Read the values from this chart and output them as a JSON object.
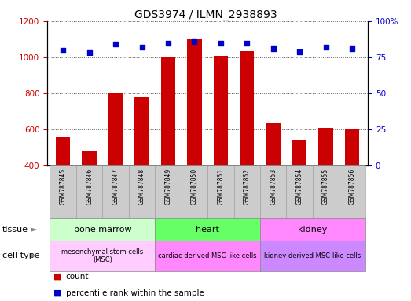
{
  "title": "GDS3974 / ILMN_2938893",
  "samples": [
    "GSM787845",
    "GSM787846",
    "GSM787847",
    "GSM787848",
    "GSM787849",
    "GSM787850",
    "GSM787851",
    "GSM787852",
    "GSM787853",
    "GSM787854",
    "GSM787855",
    "GSM787856"
  ],
  "counts": [
    555,
    480,
    800,
    780,
    1000,
    1100,
    1005,
    1035,
    635,
    545,
    610,
    600
  ],
  "percentile_ranks": [
    80,
    78,
    84,
    82,
    85,
    86,
    85,
    85,
    81,
    79,
    82,
    81
  ],
  "ylim_left": [
    400,
    1200
  ],
  "ylim_right": [
    0,
    100
  ],
  "yticks_left": [
    400,
    600,
    800,
    1000,
    1200
  ],
  "yticks_right": [
    0,
    25,
    50,
    75,
    100
  ],
  "bar_color": "#cc0000",
  "dot_color": "#0000cc",
  "bar_width": 0.55,
  "tissue_groups": [
    {
      "label": "bone marrow",
      "start": 0,
      "end": 3,
      "color": "#ccffcc"
    },
    {
      "label": "heart",
      "start": 4,
      "end": 7,
      "color": "#66ff66"
    },
    {
      "label": "kidney",
      "start": 8,
      "end": 11,
      "color": "#ff88ff"
    }
  ],
  "cell_type_groups": [
    {
      "label": "mesenchymal stem cells\n(MSC)",
      "start": 0,
      "end": 3,
      "color": "#ffccff"
    },
    {
      "label": "cardiac derived MSC-like cells",
      "start": 4,
      "end": 7,
      "color": "#ff88ff"
    },
    {
      "label": "kidney derived MSC-like cells",
      "start": 8,
      "end": 11,
      "color": "#cc88ff"
    }
  ],
  "bar_color_legend": "#cc0000",
  "dot_color_legend": "#0000cc",
  "ylabel_left_color": "#cc0000",
  "ylabel_right_color": "#0000cc",
  "xticklabel_bg": "#cccccc",
  "bg_color": "#ffffff"
}
